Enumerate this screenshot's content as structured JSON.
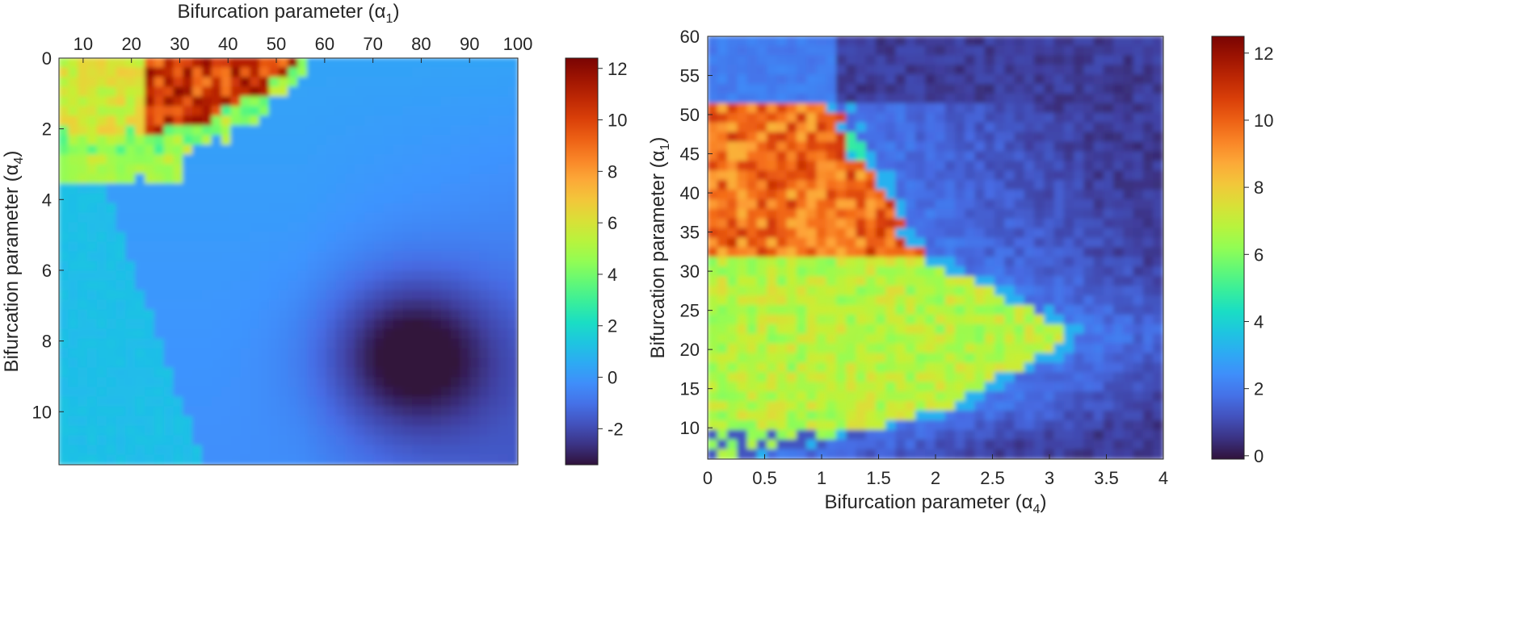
{
  "chart_data": [
    {
      "type": "heatmap",
      "xlabel": "Bifurcation parameter (α1)",
      "ylabel": "Bifurcation parameter (α4)",
      "x_axis_position": "top",
      "y_axis_direction": "reversed",
      "xlim": [
        5,
        100
      ],
      "ylim": [
        0,
        11.5
      ],
      "xticks": [
        10,
        20,
        30,
        40,
        50,
        60,
        70,
        80,
        90,
        100
      ],
      "yticks": [
        0,
        2,
        4,
        6,
        8,
        10
      ],
      "colorbar": {
        "range": [
          -3.4,
          12.4
        ],
        "ticks": [
          -2,
          0,
          2,
          4,
          6,
          8,
          10,
          12
        ]
      },
      "colormap": "turbo",
      "features": [
        {
          "description": "peak region",
          "x": [
            24,
            52
          ],
          "y": [
            0,
            3
          ],
          "value": 11
        },
        {
          "description": "elevated region",
          "x": [
            5,
            24
          ],
          "y": [
            0,
            3.2
          ],
          "value": 5.5
        },
        {
          "description": "background",
          "value": 0
        },
        {
          "description": "minimum",
          "x": 78,
          "y": 8.4,
          "value": -3.4
        }
      ]
    },
    {
      "type": "heatmap",
      "xlabel": "Bifurcation parameter (α4)",
      "ylabel": "Bifurcation parameter (α1)",
      "xlim": [
        0,
        4
      ],
      "ylim": [
        6,
        60
      ],
      "xticks": [
        0,
        0.5,
        1,
        1.5,
        2,
        2.5,
        3,
        3.5,
        4
      ],
      "yticks": [
        10,
        15,
        20,
        25,
        30,
        35,
        40,
        45,
        50,
        55,
        60
      ],
      "colorbar": {
        "range": [
          -0.1,
          12.5
        ],
        "ticks": [
          0,
          2,
          4,
          6,
          8,
          10,
          12
        ]
      },
      "colormap": "turbo",
      "features": [
        {
          "description": "high region",
          "x": [
            0,
            1.6
          ],
          "y": [
            32,
            52
          ],
          "value": 10
        },
        {
          "description": "mid region",
          "x": [
            0,
            3.4
          ],
          "y": [
            12,
            32
          ],
          "value": 6.5
        },
        {
          "description": "background",
          "x": [
            1.6,
            4
          ],
          "y": [
            6,
            60
          ],
          "value": 0.5
        }
      ]
    }
  ]
}
